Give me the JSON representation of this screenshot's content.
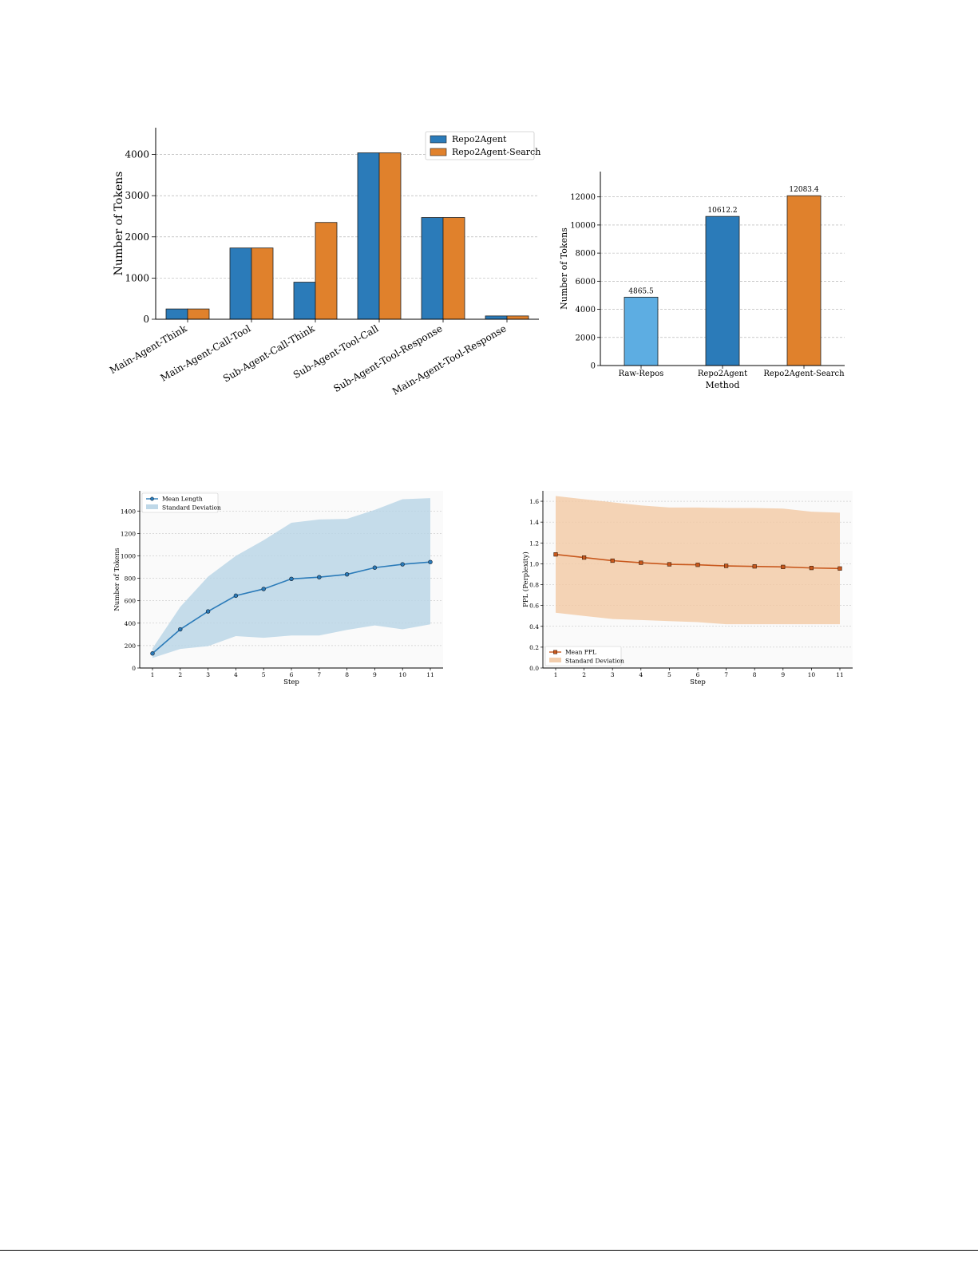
{
  "chart_data": [
    {
      "id": "chart-token-by-component",
      "type": "bar",
      "title": "",
      "xlabel": "",
      "ylabel": "Number of Tokens",
      "categories": [
        "Main-Agent-Think",
        "Main-Agent-Call-Tool",
        "Sub-Agent-Call-Think",
        "Sub-Agent-Tool-Call",
        "Sub-Agent-Tool-Response",
        "Main-Agent-Tool-Response"
      ],
      "series": [
        {
          "name": "Repo2Agent",
          "values": [
            250,
            1730,
            900,
            4040,
            2470,
            80
          ],
          "color": "#2b7bb9"
        },
        {
          "name": "Repo2Agent-Search",
          "values": [
            250,
            1730,
            2350,
            4040,
            2470,
            80
          ],
          "color": "#e0812c"
        }
      ],
      "ylim": [
        0,
        4650
      ],
      "yticks": [
        0,
        1000,
        2000,
        3000,
        4000
      ],
      "grid": true,
      "legend": "top-right"
    },
    {
      "id": "chart-token-by-method",
      "type": "bar",
      "title": "",
      "xlabel": "Method",
      "ylabel": "Number of Tokens",
      "categories": [
        "Raw-Repos",
        "Repo2Agent",
        "Repo2Agent-Search"
      ],
      "values": [
        4865.5,
        10612.2,
        12083.4
      ],
      "value_labels": [
        "4865.5",
        "10612.2",
        "12083.4"
      ],
      "colors": [
        "#5dade2",
        "#2b7bb9",
        "#e0812c"
      ],
      "ylim": [
        0,
        13800
      ],
      "yticks": [
        0,
        2000,
        4000,
        6000,
        8000,
        10000,
        12000
      ],
      "grid": true
    },
    {
      "id": "chart-length-by-step",
      "type": "line",
      "title": "",
      "xlabel": "Step",
      "ylabel": "Number of Tokens",
      "x": [
        1,
        2,
        3,
        4,
        5,
        6,
        7,
        8,
        9,
        10,
        11
      ],
      "series": [
        {
          "name": "Mean Length",
          "values": [
            130,
            345,
            505,
            645,
            705,
            795,
            810,
            835,
            895,
            925,
            945
          ],
          "color": "#2b7bb9",
          "marker": "circle"
        }
      ],
      "band": {
        "name": "Standard Deviation",
        "lower": [
          90,
          170,
          195,
          285,
          270,
          290,
          290,
          340,
          380,
          345,
          390
        ],
        "upper": [
          175,
          545,
          815,
          1000,
          1140,
          1295,
          1325,
          1330,
          1410,
          1505,
          1515
        ],
        "color": "#b8d4e6"
      },
      "ylim": [
        0,
        1580
      ],
      "yticks": [
        0,
        200,
        400,
        600,
        800,
        1000,
        1200,
        1400
      ],
      "grid": true,
      "legend": "top-left"
    },
    {
      "id": "chart-ppl-by-step",
      "type": "line",
      "title": "",
      "xlabel": "Step",
      "ylabel": "PPL (Perplexity)",
      "x": [
        1,
        2,
        3,
        4,
        5,
        6,
        7,
        8,
        9,
        10,
        11
      ],
      "series": [
        {
          "name": "Mean PPL",
          "values": [
            1.09,
            1.06,
            1.03,
            1.01,
            0.995,
            0.99,
            0.98,
            0.975,
            0.97,
            0.96,
            0.955
          ],
          "color": "#c8581d",
          "marker": "square"
        }
      ],
      "band": {
        "name": "Standard Deviation",
        "lower": [
          0.53,
          0.5,
          0.47,
          0.46,
          0.45,
          0.44,
          0.42,
          0.42,
          0.42,
          0.42,
          0.42
        ],
        "upper": [
          1.65,
          1.62,
          1.59,
          1.56,
          1.54,
          1.54,
          1.535,
          1.535,
          1.53,
          1.5,
          1.49
        ],
        "color": "#f2c9a4"
      },
      "ylim": [
        0,
        1.7
      ],
      "yticks": [
        0.0,
        0.2,
        0.4,
        0.6,
        0.8,
        1.0,
        1.2,
        1.4,
        1.6
      ],
      "grid": true,
      "legend": "bottom-left"
    }
  ]
}
